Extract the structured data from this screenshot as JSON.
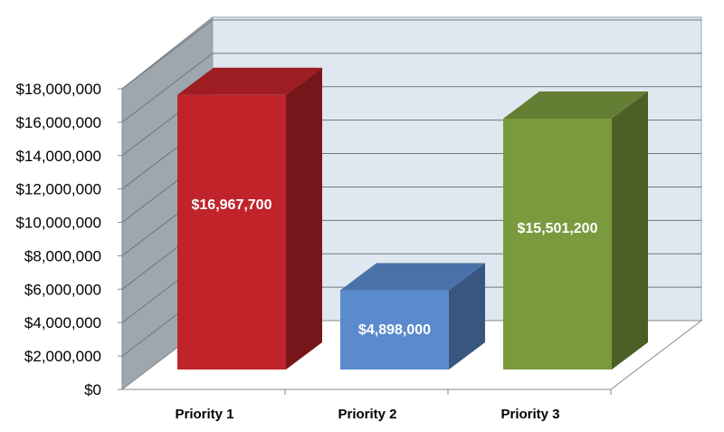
{
  "chart_data": {
    "type": "bar",
    "categories": [
      "Priority 1",
      "Priority 2",
      "Priority 3"
    ],
    "values": [
      16967700,
      4898000,
      15501200
    ],
    "data_labels": [
      "$16,967,700",
      "$4,898,000",
      "$15,501,200"
    ],
    "y_ticks": [
      "$0",
      "$2,000,000",
      "$4,000,000",
      "$6,000,000",
      "$8,000,000",
      "$10,000,000",
      "$12,000,000",
      "$14,000,000",
      "$16,000,000",
      "$18,000,000"
    ],
    "ylim": [
      0,
      18000000
    ],
    "colors": [
      "#c0232a",
      "#5b8bcd",
      "#7a9a3e"
    ],
    "style": "3d",
    "grid": true,
    "legend": "none"
  }
}
